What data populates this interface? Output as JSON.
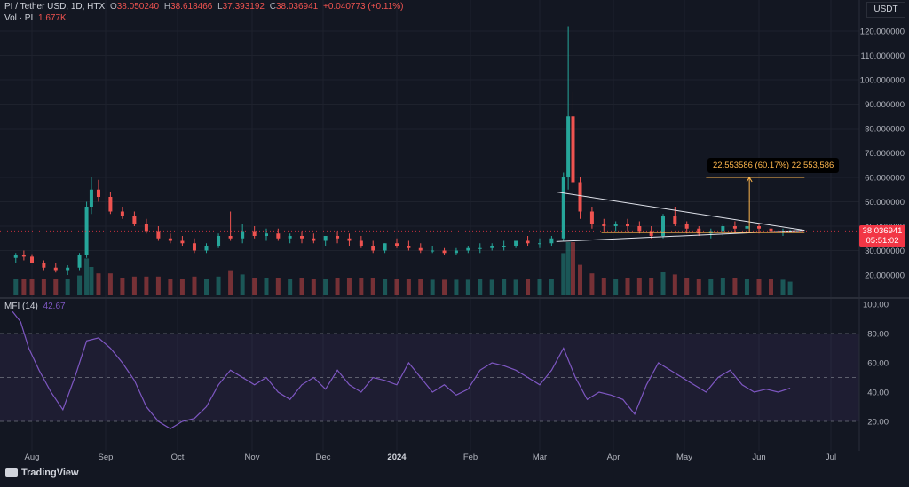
{
  "header": {
    "symbol": "PI / Tether USD, 1D, HTX",
    "open_label": "O",
    "open": "38.050240",
    "high_label": "H",
    "high": "38.618466",
    "low_label": "L",
    "low": "37.393192",
    "close_label": "C",
    "close": "38.036941",
    "change": "+0.040773 (+0.11%)",
    "volume_label": "Vol · PI",
    "volume": "1.677K"
  },
  "price_scale": {
    "currency": "USDT",
    "last_price": "38.036941",
    "countdown": "05:51:02"
  },
  "measure": {
    "label": "22.553586 (60.17%) 22,553,586"
  },
  "indicator": {
    "name": "MFI (14)",
    "value": "42.67"
  },
  "branding": {
    "name": "TradingView"
  },
  "colors": {
    "up": "#26a69a",
    "down": "#ef5350",
    "mfi": "#7e57c2",
    "measure": "#ffb74d",
    "last_price_bg": "#f23645",
    "background": "#131722"
  },
  "chart_data": [
    {
      "type": "candlestick",
      "title": "PI / Tether USD, 1D, HTX",
      "x_tick_labels": [
        "Aug",
        "Sep",
        "Oct",
        "Nov",
        "Dec",
        "2024",
        "Feb",
        "Mar",
        "Apr",
        "May",
        "Jun",
        "Jul"
      ],
      "y_tick_labels": [
        "20.000000",
        "30.000000",
        "40.000000",
        "50.000000",
        "60.000000",
        "70.000000",
        "80.000000",
        "90.000000",
        "100.000000",
        "110.000000",
        "120.000000"
      ],
      "ylim": [
        10,
        125
      ],
      "x_dates": [
        "2023-07-22",
        "2023-07-27",
        "2023-08-01",
        "2023-08-06",
        "2023-08-11",
        "2023-08-16",
        "2023-08-21",
        "2023-08-24",
        "2023-08-26",
        "2023-08-29",
        "2023-09-03",
        "2023-09-08",
        "2023-09-13",
        "2023-09-18",
        "2023-09-23",
        "2023-09-28",
        "2023-10-03",
        "2023-10-08",
        "2023-10-13",
        "2023-10-18",
        "2023-10-23",
        "2023-10-28",
        "2023-11-02",
        "2023-11-07",
        "2023-11-12",
        "2023-11-17",
        "2023-11-22",
        "2023-11-27",
        "2023-12-02",
        "2023-12-07",
        "2023-12-12",
        "2023-12-17",
        "2023-12-22",
        "2023-12-27",
        "2024-01-01",
        "2024-01-06",
        "2024-01-11",
        "2024-01-16",
        "2024-01-21",
        "2024-01-26",
        "2024-01-31",
        "2024-02-05",
        "2024-02-10",
        "2024-02-15",
        "2024-02-20",
        "2024-02-25",
        "2024-03-01",
        "2024-03-06",
        "2024-03-11",
        "2024-03-13",
        "2024-03-15",
        "2024-03-18",
        "2024-03-23",
        "2024-03-28",
        "2024-04-02",
        "2024-04-07",
        "2024-04-12",
        "2024-04-17",
        "2024-04-22",
        "2024-04-27",
        "2024-05-02",
        "2024-05-07",
        "2024-05-12",
        "2024-05-17",
        "2024-05-22",
        "2024-05-27",
        "2024-06-01",
        "2024-06-06",
        "2024-06-11",
        "2024-06-14"
      ],
      "open": [
        27.0,
        28.0,
        27.5,
        25.0,
        23.0,
        22.0,
        23.0,
        28.0,
        48.0,
        55.0,
        52.0,
        46.0,
        44.0,
        41.0,
        38.0,
        35.0,
        34.0,
        33.0,
        30.0,
        32.0,
        36.0,
        35.0,
        38.0,
        36.0,
        37.0,
        35.0,
        36.0,
        35.0,
        34.0,
        36.0,
        35.0,
        34.0,
        32.0,
        30.0,
        33.0,
        32.0,
        31.0,
        30.0,
        30.0,
        29.0,
        30.0,
        31.0,
        31.0,
        32.0,
        32.0,
        34.0,
        33.0,
        33.0,
        35.0,
        60.0,
        85.0,
        58.0,
        46.0,
        41.0,
        40.0,
        41.0,
        40.0,
        38.0,
        36.0,
        44.0,
        41.0,
        39.0,
        37.0,
        38.0,
        40.0,
        39.0,
        40.0,
        39.0,
        38.0,
        38.0
      ],
      "high": [
        29.0,
        30.0,
        28.5,
        26.0,
        25.0,
        24.0,
        29.0,
        50.0,
        60.0,
        59.0,
        54.0,
        48.0,
        46.0,
        43.0,
        40.0,
        37.0,
        36.0,
        35.0,
        33.0,
        37.0,
        46.0,
        41.0,
        40.0,
        39.0,
        39.0,
        37.0,
        38.0,
        37.0,
        36.0,
        38.0,
        37.0,
        36.0,
        34.0,
        33.0,
        35.0,
        34.0,
        33.0,
        32.0,
        31.0,
        31.0,
        32.0,
        33.0,
        33.0,
        34.0,
        34.0,
        36.0,
        35.0,
        36.0,
        62.0,
        122.0,
        95.0,
        60.0,
        48.0,
        43.0,
        42.0,
        43.0,
        42.0,
        40.0,
        45.0,
        48.0,
        42.0,
        40.0,
        39.0,
        41.0,
        42.0,
        41.0,
        41.0,
        40.0,
        39.0,
        38.6
      ],
      "low": [
        25.0,
        26.0,
        25.0,
        22.0,
        21.0,
        20.0,
        22.0,
        27.0,
        45.0,
        50.0,
        45.0,
        43.0,
        40.0,
        37.0,
        34.0,
        33.0,
        32.0,
        29.0,
        29.0,
        31.0,
        34.0,
        33.0,
        35.0,
        34.0,
        34.0,
        33.0,
        33.0,
        33.0,
        32.0,
        33.0,
        32.0,
        31.0,
        29.0,
        29.0,
        31.0,
        30.0,
        29.0,
        29.0,
        28.0,
        28.0,
        29.0,
        29.0,
        30.0,
        30.0,
        31.0,
        32.0,
        31.0,
        32.0,
        34.0,
        55.0,
        52.0,
        43.0,
        39.0,
        38.0,
        38.0,
        38.0,
        37.0,
        35.0,
        35.0,
        40.0,
        37.0,
        36.0,
        35.0,
        36.0,
        37.0,
        37.0,
        37.0,
        36.0,
        36.0,
        37.4
      ],
      "close": [
        28.0,
        27.5,
        25.0,
        23.0,
        22.0,
        23.0,
        28.0,
        48.0,
        55.0,
        52.0,
        46.0,
        44.0,
        41.0,
        38.0,
        35.0,
        34.0,
        33.0,
        30.0,
        32.0,
        36.0,
        35.0,
        38.0,
        36.0,
        37.0,
        35.0,
        36.0,
        35.0,
        34.0,
        36.0,
        35.0,
        34.0,
        32.0,
        30.0,
        33.0,
        32.0,
        31.0,
        30.0,
        30.0,
        29.0,
        30.0,
        31.0,
        31.0,
        32.0,
        32.0,
        34.0,
        33.0,
        33.0,
        35.0,
        60.0,
        85.0,
        58.0,
        46.0,
        41.0,
        40.0,
        41.0,
        40.0,
        38.0,
        36.0,
        44.0,
        41.0,
        39.0,
        37.0,
        38.0,
        40.0,
        39.0,
        40.0,
        39.0,
        38.0,
        38.05,
        38.04
      ],
      "volume_axis_label": "Vol · PI"
    },
    {
      "type": "line",
      "title": "MFI (14)",
      "y_tick_labels": [
        "20.00",
        "40.00",
        "60.00",
        "80.00",
        "100.00"
      ],
      "ylim": [
        10,
        100
      ],
      "bands": [
        20,
        50,
        80
      ],
      "x_dates": [
        "2023-07-20",
        "2023-07-25",
        "2023-07-30",
        "2023-08-04",
        "2023-08-09",
        "2023-08-14",
        "2023-08-19",
        "2023-08-24",
        "2023-08-29",
        "2023-09-03",
        "2023-09-08",
        "2023-09-13",
        "2023-09-18",
        "2023-09-23",
        "2023-09-28",
        "2023-10-03",
        "2023-10-08",
        "2023-10-13",
        "2023-10-18",
        "2023-10-23",
        "2023-10-28",
        "2023-11-02",
        "2023-11-07",
        "2023-11-12",
        "2023-11-17",
        "2023-11-22",
        "2023-11-27",
        "2023-12-02",
        "2023-12-07",
        "2023-12-12",
        "2023-12-17",
        "2023-12-22",
        "2023-12-27",
        "2024-01-01",
        "2024-01-06",
        "2024-01-11",
        "2024-01-16",
        "2024-01-21",
        "2024-01-26",
        "2024-01-31",
        "2024-02-05",
        "2024-02-10",
        "2024-02-15",
        "2024-02-20",
        "2024-02-25",
        "2024-03-01",
        "2024-03-06",
        "2024-03-11",
        "2024-03-16",
        "2024-03-21",
        "2024-03-26",
        "2024-03-31",
        "2024-04-05",
        "2024-04-10",
        "2024-04-15",
        "2024-04-20",
        "2024-04-25",
        "2024-04-30",
        "2024-05-05",
        "2024-05-10",
        "2024-05-15",
        "2024-05-20",
        "2024-05-25",
        "2024-05-30",
        "2024-06-04",
        "2024-06-09",
        "2024-06-14"
      ],
      "values": [
        95,
        88,
        70,
        55,
        40,
        28,
        50,
        75,
        77,
        70,
        60,
        48,
        30,
        20,
        15,
        20,
        22,
        30,
        45,
        55,
        50,
        45,
        50,
        40,
        35,
        45,
        50,
        42,
        55,
        45,
        40,
        50,
        48,
        45,
        60,
        50,
        40,
        45,
        38,
        42,
        55,
        60,
        58,
        55,
        50,
        45,
        55,
        70,
        50,
        35,
        40,
        38,
        35,
        25,
        45,
        60,
        55,
        50,
        45,
        40,
        50,
        55,
        45,
        40,
        42,
        40,
        42.67
      ]
    }
  ]
}
